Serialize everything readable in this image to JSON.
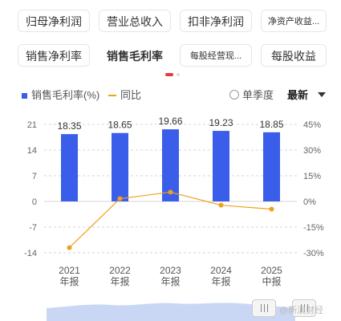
{
  "tabs": [
    {
      "label": "归母净利润"
    },
    {
      "label": "营业总收入"
    },
    {
      "label": "扣非净利润"
    },
    {
      "label": "净资产收益..."
    },
    {
      "label": "销售净利率"
    },
    {
      "label": "销售毛利率"
    },
    {
      "label": "每股经营现..."
    },
    {
      "label": "每股收益"
    }
  ],
  "legend": {
    "bar_label": "销售毛利率(%)",
    "line_label": "同比",
    "single_quarter": "单季度",
    "latest": "最新"
  },
  "colors": {
    "bar": "#3a5eea",
    "line": "#f0a11c",
    "accent": "#e8383d"
  },
  "watermark": "@新浪财经",
  "chart_data": {
    "type": "bar",
    "categories": [
      "2021\n年报",
      "2022\n年报",
      "2023\n年报",
      "2024\n年报",
      "2025\n中报"
    ],
    "category_lines": [
      [
        "2021",
        "年报"
      ],
      [
        "2022",
        "年报"
      ],
      [
        "2023",
        "年报"
      ],
      [
        "2024",
        "年报"
      ],
      [
        "2025",
        "中报"
      ]
    ],
    "series": [
      {
        "name": "销售毛利率(%)",
        "type": "bar",
        "values": [
          18.35,
          18.65,
          19.66,
          19.23,
          18.85
        ],
        "labels": [
          "18.35",
          "18.65",
          "19.66",
          "19.23",
          "18.85"
        ]
      },
      {
        "name": "同比",
        "type": "line",
        "axis": "right",
        "values": [
          -27,
          1.63,
          5.42,
          -2.19,
          -4.5
        ]
      }
    ],
    "left_axis": {
      "ticks": [
        21,
        14,
        7,
        0,
        -7,
        -14
      ],
      "labels": [
        "21",
        "14",
        "7",
        "0",
        "-7",
        "-14"
      ],
      "range": [
        -14,
        21
      ]
    },
    "right_axis": {
      "ticks": [
        45,
        30,
        15,
        0,
        -15,
        -30
      ],
      "labels": [
        "45%",
        "30%",
        "15%",
        "0%",
        "-15%",
        "-30%"
      ],
      "range": [
        -30,
        45
      ]
    },
    "grid": true
  }
}
